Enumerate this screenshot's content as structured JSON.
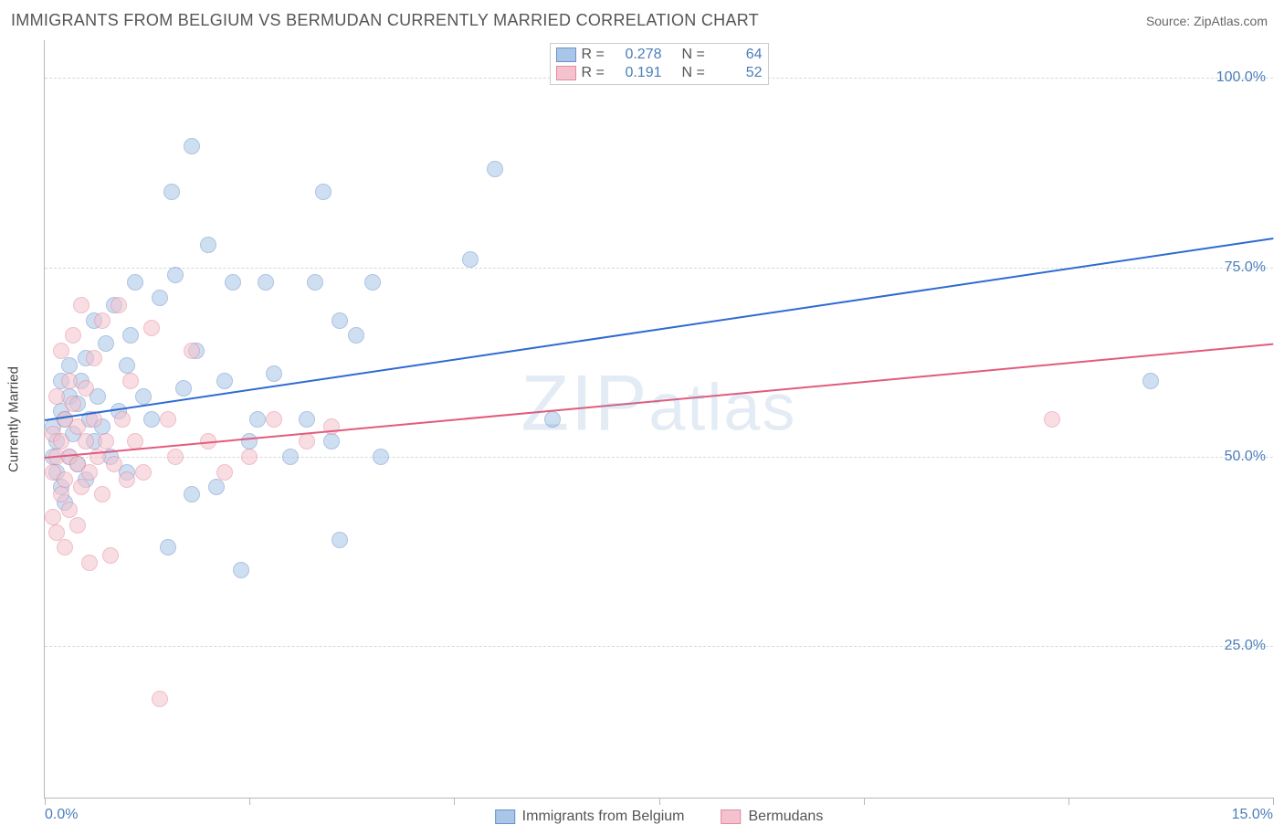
{
  "header": {
    "title": "IMMIGRANTS FROM BELGIUM VS BERMUDAN CURRENTLY MARRIED CORRELATION CHART",
    "source_label": "Source:",
    "source_value": "ZipAtlas.com"
  },
  "watermark": "ZIPatlas",
  "chart": {
    "type": "scatter",
    "background_color": "#ffffff",
    "grid_color": "#d8d8d8",
    "axis_color": "#b8b8b8",
    "text_color": "#555555",
    "value_color": "#4a7ebb",
    "title_fontsize": 18,
    "label_fontsize": 15,
    "tick_fontsize": 16,
    "ylabel": "Currently Married",
    "xlim": [
      0,
      15
    ],
    "ylim": [
      5,
      105
    ],
    "xticks": [
      0,
      2.5,
      5,
      7.5,
      10,
      12.5,
      15
    ],
    "xtick_labels_shown": {
      "0": "0.0%",
      "15": "15.0%"
    },
    "yticks": [
      25,
      50,
      75,
      100
    ],
    "ytick_labels": [
      "25.0%",
      "50.0%",
      "75.0%",
      "100.0%"
    ],
    "marker_size": 18,
    "marker_opacity": 0.55,
    "line_width": 2,
    "series": [
      {
        "name": "Immigrants from Belgium",
        "color_fill": "#a9c6e8",
        "color_border": "#6b93c9",
        "line_color": "#2e6bd1",
        "R": 0.278,
        "N": 64,
        "trend": {
          "x1": 0,
          "y1": 55,
          "x2": 15,
          "y2": 79
        },
        "points": [
          [
            0.1,
            50
          ],
          [
            0.1,
            54
          ],
          [
            0.15,
            48
          ],
          [
            0.15,
            52
          ],
          [
            0.2,
            46
          ],
          [
            0.2,
            56
          ],
          [
            0.2,
            60
          ],
          [
            0.25,
            44
          ],
          [
            0.25,
            55
          ],
          [
            0.3,
            50
          ],
          [
            0.3,
            58
          ],
          [
            0.3,
            62
          ],
          [
            0.35,
            53
          ],
          [
            0.4,
            49
          ],
          [
            0.4,
            57
          ],
          [
            0.45,
            60
          ],
          [
            0.5,
            47
          ],
          [
            0.5,
            63
          ],
          [
            0.55,
            55
          ],
          [
            0.6,
            52
          ],
          [
            0.6,
            68
          ],
          [
            0.65,
            58
          ],
          [
            0.7,
            54
          ],
          [
            0.75,
            65
          ],
          [
            0.8,
            50
          ],
          [
            0.85,
            70
          ],
          [
            0.9,
            56
          ],
          [
            1.0,
            62
          ],
          [
            1.0,
            48
          ],
          [
            1.05,
            66
          ],
          [
            1.1,
            73
          ],
          [
            1.2,
            58
          ],
          [
            1.3,
            55
          ],
          [
            1.4,
            71
          ],
          [
            1.5,
            38
          ],
          [
            1.55,
            85
          ],
          [
            1.6,
            74
          ],
          [
            1.7,
            59
          ],
          [
            1.8,
            91
          ],
          [
            1.8,
            45
          ],
          [
            1.85,
            64
          ],
          [
            2.0,
            78
          ],
          [
            2.1,
            46
          ],
          [
            2.2,
            60
          ],
          [
            2.3,
            73
          ],
          [
            2.4,
            35
          ],
          [
            2.5,
            52
          ],
          [
            2.6,
            55
          ],
          [
            2.7,
            73
          ],
          [
            2.8,
            61
          ],
          [
            3.0,
            50
          ],
          [
            3.2,
            55
          ],
          [
            3.3,
            73
          ],
          [
            3.4,
            85
          ],
          [
            3.5,
            52
          ],
          [
            3.6,
            68
          ],
          [
            3.6,
            39
          ],
          [
            3.8,
            66
          ],
          [
            4.0,
            73
          ],
          [
            4.1,
            50
          ],
          [
            5.2,
            76
          ],
          [
            5.5,
            88
          ],
          [
            6.2,
            55
          ],
          [
            13.5,
            60
          ]
        ]
      },
      {
        "name": "Bermudans",
        "color_fill": "#f4c2cd",
        "color_border": "#e48aa0",
        "line_color": "#e25b7d",
        "R": 0.191,
        "N": 52,
        "trend": {
          "x1": 0,
          "y1": 50,
          "x2": 15,
          "y2": 65
        },
        "points": [
          [
            0.1,
            42
          ],
          [
            0.1,
            48
          ],
          [
            0.1,
            53
          ],
          [
            0.15,
            40
          ],
          [
            0.15,
            50
          ],
          [
            0.15,
            58
          ],
          [
            0.2,
            45
          ],
          [
            0.2,
            52
          ],
          [
            0.2,
            64
          ],
          [
            0.25,
            38
          ],
          [
            0.25,
            47
          ],
          [
            0.25,
            55
          ],
          [
            0.3,
            43
          ],
          [
            0.3,
            50
          ],
          [
            0.3,
            60
          ],
          [
            0.35,
            57
          ],
          [
            0.35,
            66
          ],
          [
            0.4,
            41
          ],
          [
            0.4,
            49
          ],
          [
            0.4,
            54
          ],
          [
            0.45,
            70
          ],
          [
            0.45,
            46
          ],
          [
            0.5,
            52
          ],
          [
            0.5,
            59
          ],
          [
            0.55,
            36
          ],
          [
            0.55,
            48
          ],
          [
            0.6,
            55
          ],
          [
            0.6,
            63
          ],
          [
            0.65,
            50
          ],
          [
            0.7,
            45
          ],
          [
            0.7,
            68
          ],
          [
            0.75,
            52
          ],
          [
            0.8,
            37
          ],
          [
            0.85,
            49
          ],
          [
            0.9,
            70
          ],
          [
            0.95,
            55
          ],
          [
            1.0,
            47
          ],
          [
            1.05,
            60
          ],
          [
            1.1,
            52
          ],
          [
            1.2,
            48
          ],
          [
            1.3,
            67
          ],
          [
            1.4,
            18
          ],
          [
            1.5,
            55
          ],
          [
            1.6,
            50
          ],
          [
            1.8,
            64
          ],
          [
            2.0,
            52
          ],
          [
            2.2,
            48
          ],
          [
            2.5,
            50
          ],
          [
            2.8,
            55
          ],
          [
            3.2,
            52
          ],
          [
            3.5,
            54
          ],
          [
            12.3,
            55
          ]
        ]
      }
    ],
    "legend_top": {
      "r_label": "R =",
      "n_label": "N ="
    },
    "legend_bottom": {
      "series1_label": "Immigrants from Belgium",
      "series2_label": "Bermudans"
    }
  }
}
